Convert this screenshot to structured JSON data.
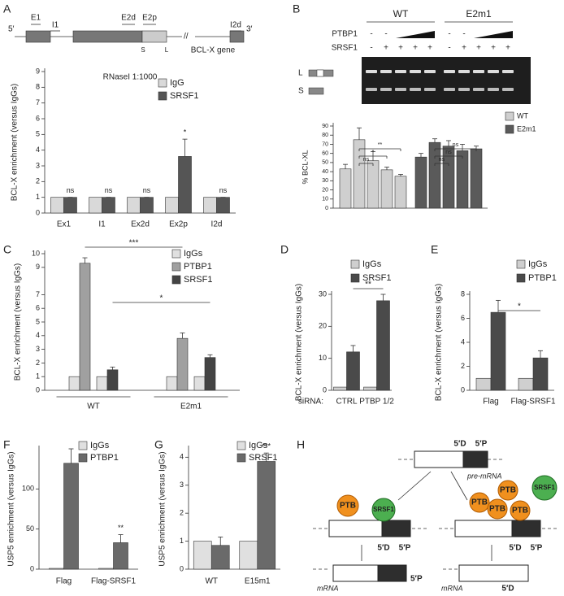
{
  "diagram_a": {
    "five": "5′",
    "three": "3′",
    "exons": [
      "E1",
      "I1",
      "E2d",
      "E2p",
      "I2d"
    ],
    "sites": [
      "S",
      "L"
    ],
    "gene": "BCL-X gene"
  },
  "gel": {
    "panel": "B",
    "groups": [
      "WT",
      "E2m1"
    ],
    "rows": [
      {
        "label": "PTBP1",
        "marks": [
          "-",
          "-",
          "-",
          "-"
        ]
      },
      {
        "label": "SRSF1",
        "marks": [
          "-",
          "+",
          "+",
          "+",
          "+",
          "-",
          "+",
          "+",
          "+",
          "+"
        ]
      }
    ],
    "bands": [
      "L",
      "S"
    ]
  },
  "chart_data": [
    {
      "type": "bar",
      "panel": "A",
      "y_label": "BCL-X enrichment  (versus IgGs)",
      "note": "RNaseI 1:1000",
      "categories": [
        "Ex1",
        "I1",
        "Ex2d",
        "Ex2p",
        "I2d"
      ],
      "series": [
        {
          "name": "IgG",
          "color": "#d9d9d9",
          "values": [
            1,
            1,
            1,
            1,
            1
          ]
        },
        {
          "name": "SRSF1",
          "color": "#555555",
          "values": [
            1,
            1,
            1,
            3.6,
            1
          ],
          "errors": [
            0,
            0,
            0,
            1.1,
            0
          ]
        }
      ],
      "ylim": [
        0,
        9
      ],
      "yticks": [
        0,
        1,
        2,
        3,
        4,
        5,
        6,
        7,
        8,
        9
      ],
      "annotations": [
        "ns",
        "ns",
        "ns",
        "*",
        "ns"
      ]
    },
    {
      "type": "bar",
      "panel": "B",
      "y_label": "% BCL-XL",
      "categories": [
        null,
        null,
        null,
        null,
        null
      ],
      "series": [
        {
          "name": "WT",
          "color": "#cfcfcf",
          "values": [
            43,
            75,
            52,
            42,
            35
          ],
          "errors": [
            5,
            13,
            10,
            3,
            2
          ]
        },
        {
          "name": "E2m1",
          "color": "#5a5a5a",
          "values": [
            56,
            72,
            68,
            63,
            65
          ],
          "errors": [
            4,
            4,
            6,
            7,
            3
          ]
        }
      ],
      "ylim": [
        0,
        90
      ],
      "yticks": [
        0,
        10,
        20,
        30,
        40,
        50,
        60,
        70,
        80,
        90
      ],
      "annotations": [
        "**",
        "*",
        "ns",
        "ns",
        "ns",
        "ns"
      ]
    },
    {
      "type": "bar",
      "panel": "C",
      "y_label": "BCL-X enrichment  (versus IgGs)",
      "categories": [
        "WT",
        "E2m1"
      ],
      "legend": [
        {
          "name": "IgGs",
          "color": "#e0e0e0"
        },
        {
          "name": "PTBP1",
          "color": "#a0a0a0"
        },
        {
          "name": "SRSF1",
          "color": "#444444"
        }
      ],
      "series": [
        {
          "color": "#e0e0e0",
          "values": [
            1,
            1
          ]
        },
        {
          "color": "#a0a0a0",
          "values": [
            9.3,
            3.8
          ],
          "errors": [
            0.4,
            0.4
          ]
        },
        {
          "color": "#e0e0e0",
          "values": [
            1,
            1
          ]
        },
        {
          "color": "#444444",
          "values": [
            1.5,
            2.4
          ],
          "errors": [
            0.2,
            0.2
          ]
        }
      ],
      "ylim": [
        0,
        10
      ],
      "yticks": [
        0,
        1,
        2,
        3,
        4,
        5,
        6,
        7,
        9,
        10
      ],
      "annotations": [
        "***",
        "*"
      ]
    },
    {
      "type": "bar",
      "panel": "D",
      "y_label": "BCL-X enrichment  (versus IgGs)",
      "x_prefix": "siRNA:",
      "categories": [
        "CTRL",
        "PTBP 1/2"
      ],
      "series": [
        {
          "name": "IgGs",
          "color": "#cfcfcf",
          "values": [
            1,
            1
          ]
        },
        {
          "name": "SRSF1",
          "color": "#4a4a4a",
          "values": [
            12,
            28
          ],
          "errors": [
            2,
            2
          ]
        }
      ],
      "ylim": [
        0,
        30
      ],
      "yticks": [
        0,
        10,
        20,
        30
      ],
      "annotations": [
        "**"
      ]
    },
    {
      "type": "bar",
      "panel": "E",
      "y_label": "BCL-X enrichment  (versus IgGs)",
      "categories": [
        "Flag",
        "Flag-SRSF1"
      ],
      "series": [
        {
          "name": "IgGs",
          "color": "#cfcfcf",
          "values": [
            1,
            1
          ]
        },
        {
          "name": "PTBP1",
          "color": "#4a4a4a",
          "values": [
            6.5,
            2.7
          ],
          "errors": [
            1,
            0.6
          ]
        }
      ],
      "ylim": [
        0,
        8
      ],
      "yticks": [
        0,
        2,
        4,
        6,
        8
      ],
      "annotations": [
        "*"
      ]
    },
    {
      "type": "bar",
      "panel": "F",
      "y_label": "USP5 enrichment (versus IgGs)",
      "categories": [
        "Flag",
        "Flag-SRSF1"
      ],
      "series": [
        {
          "name": "IgGs",
          "color": "#e0e0e0",
          "values": [
            1,
            1
          ]
        },
        {
          "name": "PTBP1",
          "color": "#6a6a6a",
          "values": [
            132,
            33
          ],
          "errors": [
            18,
            10
          ]
        }
      ],
      "ylim": [
        0,
        150
      ],
      "yticks": [
        0,
        50,
        100
      ],
      "annotations": [
        "**"
      ]
    },
    {
      "type": "bar",
      "panel": "G",
      "y_label": "USP5 enrichment (versus IgGs)",
      "categories": [
        "WT",
        "E15m1"
      ],
      "series": [
        {
          "name": "IgGs",
          "color": "#e0e0e0",
          "values": [
            1,
            1
          ]
        },
        {
          "name": "SRSF1",
          "color": "#6a6a6a",
          "values": [
            0.85,
            3.85
          ],
          "errors": [
            0.3,
            0.3
          ]
        }
      ],
      "ylim": [
        0,
        4.3
      ],
      "yticks": [
        0,
        1,
        2,
        3,
        4
      ],
      "annotations": [
        "***"
      ]
    }
  ],
  "diagram_h": {
    "panel": "H",
    "pre_mrna": {
      "labels": [
        "5′D",
        "5′P"
      ],
      "caption": "pre-mRNA"
    },
    "left": {
      "proteins": [
        "PTB",
        "SRSF1"
      ],
      "labels": [
        "5′D",
        "5′P"
      ],
      "product": {
        "label": "5′P",
        "caption": "mRNA"
      }
    },
    "right": {
      "proteins": [
        "PTB",
        "PTB",
        "PTB",
        "PTB",
        "SRSF1"
      ],
      "labels": [
        "5′D",
        "5′P"
      ],
      "product": {
        "label": "5′D",
        "caption": "mRNA"
      }
    }
  }
}
